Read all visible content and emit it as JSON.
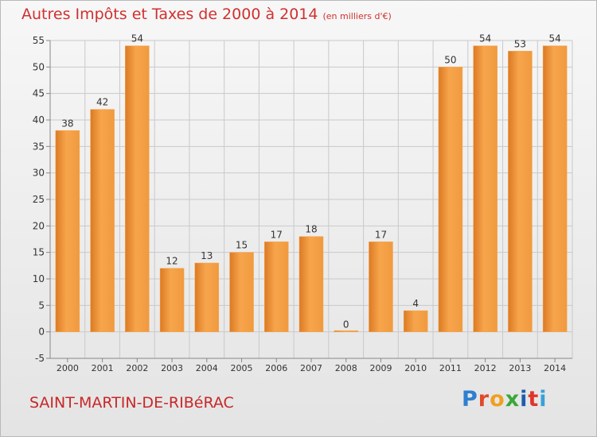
{
  "chart_data": {
    "type": "bar",
    "title": "Autres Impôts et Taxes de 2000 à 2014",
    "subtitle": "(en milliers d'€)",
    "categories": [
      "2000",
      "2001",
      "2002",
      "2003",
      "2004",
      "2005",
      "2006",
      "2007",
      "2008",
      "2009",
      "2010",
      "2011",
      "2012",
      "2013",
      "2014"
    ],
    "values": [
      38,
      42,
      54,
      12,
      13,
      15,
      17,
      18,
      0,
      17,
      4,
      50,
      54,
      53,
      54
    ],
    "ylim": [
      -5,
      55
    ],
    "yticks": [
      -5,
      0,
      5,
      10,
      15,
      20,
      25,
      30,
      35,
      40,
      45,
      50,
      55
    ],
    "grid": true,
    "colors": {
      "bar_light": "#f7a54c",
      "bar_dark": "#db7a24",
      "grid": "#c9c9c9",
      "title": "#d03030"
    }
  },
  "commune": "SAINT-MARTIN-DE-RIBéRAC",
  "logo_letters": [
    "P",
    "r",
    "o",
    "x",
    "i",
    "t",
    "i"
  ]
}
